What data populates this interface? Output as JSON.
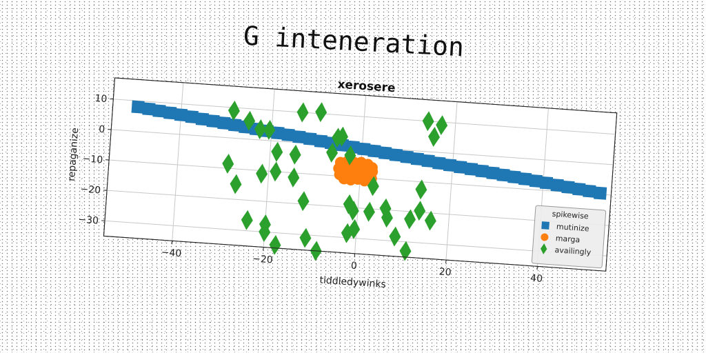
{
  "page_title": "G inteneration",
  "chart_data": {
    "type": "scatter",
    "title": "xerosere",
    "xlabel": "tiddledywinks",
    "ylabel": "repaganize",
    "xlim": [
      -55,
      55
    ],
    "ylim": [
      -35,
      17
    ],
    "x_ticks": [
      -40,
      -20,
      0,
      20,
      40
    ],
    "y_ticks": [
      10,
      0,
      -10,
      -20,
      -30
    ],
    "x_tick_labels": [
      "−40",
      "−20",
      "0",
      "20",
      "40"
    ],
    "y_tick_labels": [
      "10",
      "0",
      "−10",
      "−20",
      "−30"
    ],
    "grid": true,
    "legend": {
      "title": "spikewise",
      "position": "lower right"
    },
    "series": [
      {
        "name": "mutinize",
        "marker": "square",
        "color": "#1f77b4",
        "points": [
          [
            -49.5,
            8.0
          ],
          [
            -47.1,
            7.6
          ],
          [
            -44.8,
            7.2
          ],
          [
            -42.4,
            6.8
          ],
          [
            -40.0,
            6.4
          ],
          [
            -37.6,
            6.0
          ],
          [
            -35.3,
            5.5
          ],
          [
            -32.9,
            5.1
          ],
          [
            -30.5,
            4.7
          ],
          [
            -28.1,
            4.3
          ],
          [
            -25.8,
            3.9
          ],
          [
            -23.4,
            3.5
          ],
          [
            -21.0,
            3.1
          ],
          [
            -18.6,
            2.7
          ],
          [
            -16.3,
            2.3
          ],
          [
            -13.9,
            1.9
          ],
          [
            -11.5,
            1.5
          ],
          [
            -9.1,
            1.0
          ],
          [
            -6.8,
            0.6
          ],
          [
            -4.4,
            0.2
          ],
          [
            -2.0,
            -0.2
          ],
          [
            0.4,
            -0.6
          ],
          [
            2.7,
            -1.0
          ],
          [
            5.1,
            -1.4
          ],
          [
            7.5,
            -1.8
          ],
          [
            9.9,
            -2.2
          ],
          [
            12.2,
            -2.6
          ],
          [
            14.6,
            -3.0
          ],
          [
            17.0,
            -3.5
          ],
          [
            19.4,
            -3.9
          ],
          [
            21.7,
            -4.3
          ],
          [
            24.1,
            -4.7
          ],
          [
            26.5,
            -5.1
          ],
          [
            28.9,
            -5.5
          ],
          [
            31.2,
            -5.9
          ],
          [
            33.6,
            -6.3
          ],
          [
            36.0,
            -6.7
          ],
          [
            38.4,
            -7.1
          ],
          [
            40.7,
            -7.5
          ],
          [
            43.1,
            -8.0
          ],
          [
            45.5,
            -8.4
          ],
          [
            47.9,
            -8.8
          ],
          [
            50.2,
            -9.2
          ],
          [
            52.6,
            -9.6
          ]
        ]
      },
      {
        "name": "marga",
        "marker": "circle",
        "color": "#ff7f0e",
        "points": [
          [
            -4.5,
            -5.5
          ],
          [
            -3.0,
            -5.0
          ],
          [
            -1.5,
            -5.2
          ],
          [
            0.0,
            -5.0
          ],
          [
            1.5,
            -5.5
          ],
          [
            2.5,
            -6.5
          ],
          [
            -4.8,
            -7.5
          ],
          [
            -3.2,
            -7.0
          ],
          [
            -1.8,
            -7.2
          ],
          [
            -0.3,
            -7.0
          ],
          [
            1.2,
            -7.4
          ],
          [
            2.6,
            -7.8
          ],
          [
            -4.5,
            -9.5
          ],
          [
            -3.0,
            -9.0
          ],
          [
            -1.5,
            -9.4
          ],
          [
            0.0,
            -9.0
          ],
          [
            1.5,
            -9.6
          ],
          [
            2.5,
            -10.0
          ],
          [
            -3.5,
            -10.8
          ],
          [
            -2.0,
            -11.0
          ],
          [
            -0.5,
            -10.6
          ],
          [
            1.0,
            -11.0
          ],
          [
            2.0,
            -10.5
          ],
          [
            -2.5,
            -6.2
          ],
          [
            0.8,
            -8.2
          ]
        ]
      },
      {
        "name": "availingly",
        "marker": "diamond",
        "color": "#2ca02c",
        "points": [
          [
            -28.5,
            9.0
          ],
          [
            -25.0,
            6.0
          ],
          [
            -22.5,
            3.5
          ],
          [
            -20.5,
            3.5
          ],
          [
            -13.5,
            10.0
          ],
          [
            -9.5,
            10.5
          ],
          [
            14.0,
            10.0
          ],
          [
            17.0,
            9.0
          ],
          [
            15.5,
            5.0
          ],
          [
            -5.5,
            2.5
          ],
          [
            -4.5,
            3.0
          ],
          [
            -6.5,
            -2.5
          ],
          [
            -2.5,
            -3.0
          ],
          [
            -18.5,
            -3.5
          ],
          [
            -14.5,
            -4.0
          ],
          [
            -29.0,
            -8.5
          ],
          [
            -18.5,
            -10.0
          ],
          [
            -21.5,
            -11.0
          ],
          [
            -14.5,
            -11.5
          ],
          [
            3.0,
            -12.5
          ],
          [
            13.5,
            -12.5
          ],
          [
            -27.0,
            -15.0
          ],
          [
            -12.0,
            -19.0
          ],
          [
            -2.0,
            -19.0
          ],
          [
            6.0,
            -19.5
          ],
          [
            13.5,
            -19.5
          ],
          [
            -1.0,
            -21.0
          ],
          [
            2.5,
            -21.0
          ],
          [
            6.5,
            -22.5
          ],
          [
            11.5,
            -22.5
          ],
          [
            16.0,
            -22.5
          ],
          [
            -24.0,
            -26.5
          ],
          [
            -20.0,
            -27.5
          ],
          [
            -0.5,
            -27.0
          ],
          [
            -2.0,
            -28.5
          ],
          [
            -20.0,
            -30.0
          ],
          [
            8.5,
            -28.5
          ],
          [
            -11.0,
            -31.0
          ],
          [
            11.0,
            -33.0
          ],
          [
            -17.5,
            -34.0
          ],
          [
            -8.5,
            -35.0
          ]
        ]
      }
    ]
  }
}
